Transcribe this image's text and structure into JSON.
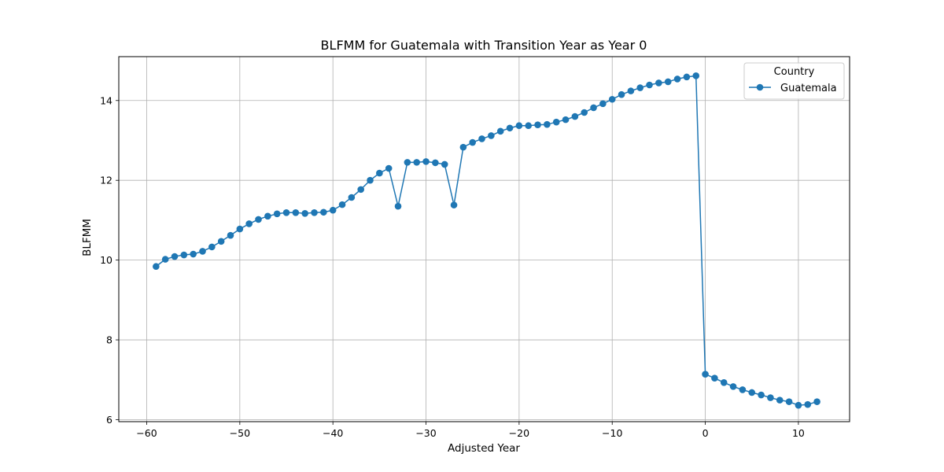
{
  "chart_data": {
    "type": "line",
    "title": "BLFMM for Guatemala with Transition Year as Year 0",
    "xlabel": "Adjusted Year",
    "ylabel": "BLFMM",
    "xlim": [
      -63,
      15.5
    ],
    "ylim": [
      5.95,
      15.1
    ],
    "x_ticks": [
      -60,
      -50,
      -40,
      -30,
      -20,
      -10,
      0,
      10
    ],
    "y_ticks": [
      6,
      8,
      10,
      12,
      14
    ],
    "x_tick_labels": [
      "−60",
      "−50",
      "−40",
      "−30",
      "−20",
      "−10",
      "0",
      "10"
    ],
    "y_tick_labels": [
      "6",
      "8",
      "10",
      "12",
      "14"
    ],
    "grid": true,
    "legend": {
      "title": "Country",
      "placement": "upper right"
    },
    "colors": {
      "series": "#1f77b4"
    },
    "series": [
      {
        "name": "Guatemala",
        "marker": "circle",
        "x": [
          -59,
          -58,
          -57,
          -56,
          -55,
          -54,
          -53,
          -52,
          -51,
          -50,
          -49,
          -48,
          -47,
          -46,
          -45,
          -44,
          -43,
          -42,
          -41,
          -40,
          -39,
          -38,
          -37,
          -36,
          -35,
          -34,
          -33,
          -32,
          -31,
          -30,
          -29,
          -28,
          -27,
          -26,
          -25,
          -24,
          -23,
          -22,
          -21,
          -20,
          -19,
          -18,
          -17,
          -16,
          -15,
          -14,
          -13,
          -12,
          -11,
          -10,
          -9,
          -8,
          -7,
          -6,
          -5,
          -4,
          -3,
          -2,
          -1,
          0,
          1,
          2,
          3,
          4,
          5,
          6,
          7,
          8,
          9,
          10,
          11,
          12
        ],
        "y": [
          9.84,
          10.02,
          10.09,
          10.13,
          10.15,
          10.22,
          10.33,
          10.47,
          10.62,
          10.78,
          10.91,
          11.02,
          11.1,
          11.16,
          11.19,
          11.19,
          11.17,
          11.19,
          11.2,
          11.25,
          11.39,
          11.57,
          11.77,
          12.0,
          12.18,
          12.3,
          11.35,
          12.45,
          12.45,
          12.47,
          12.44,
          12.4,
          11.38,
          12.83,
          12.95,
          13.04,
          13.12,
          13.23,
          13.31,
          13.37,
          13.37,
          13.39,
          13.4,
          13.46,
          13.52,
          13.6,
          13.7,
          13.82,
          13.92,
          14.03,
          14.15,
          14.24,
          14.32,
          14.39,
          14.44,
          14.47,
          14.54,
          14.59,
          14.62,
          7.14,
          7.04,
          6.93,
          6.83,
          6.75,
          6.68,
          6.62,
          6.55,
          6.49,
          6.45,
          6.36,
          6.38,
          6.45
        ]
      }
    ]
  }
}
